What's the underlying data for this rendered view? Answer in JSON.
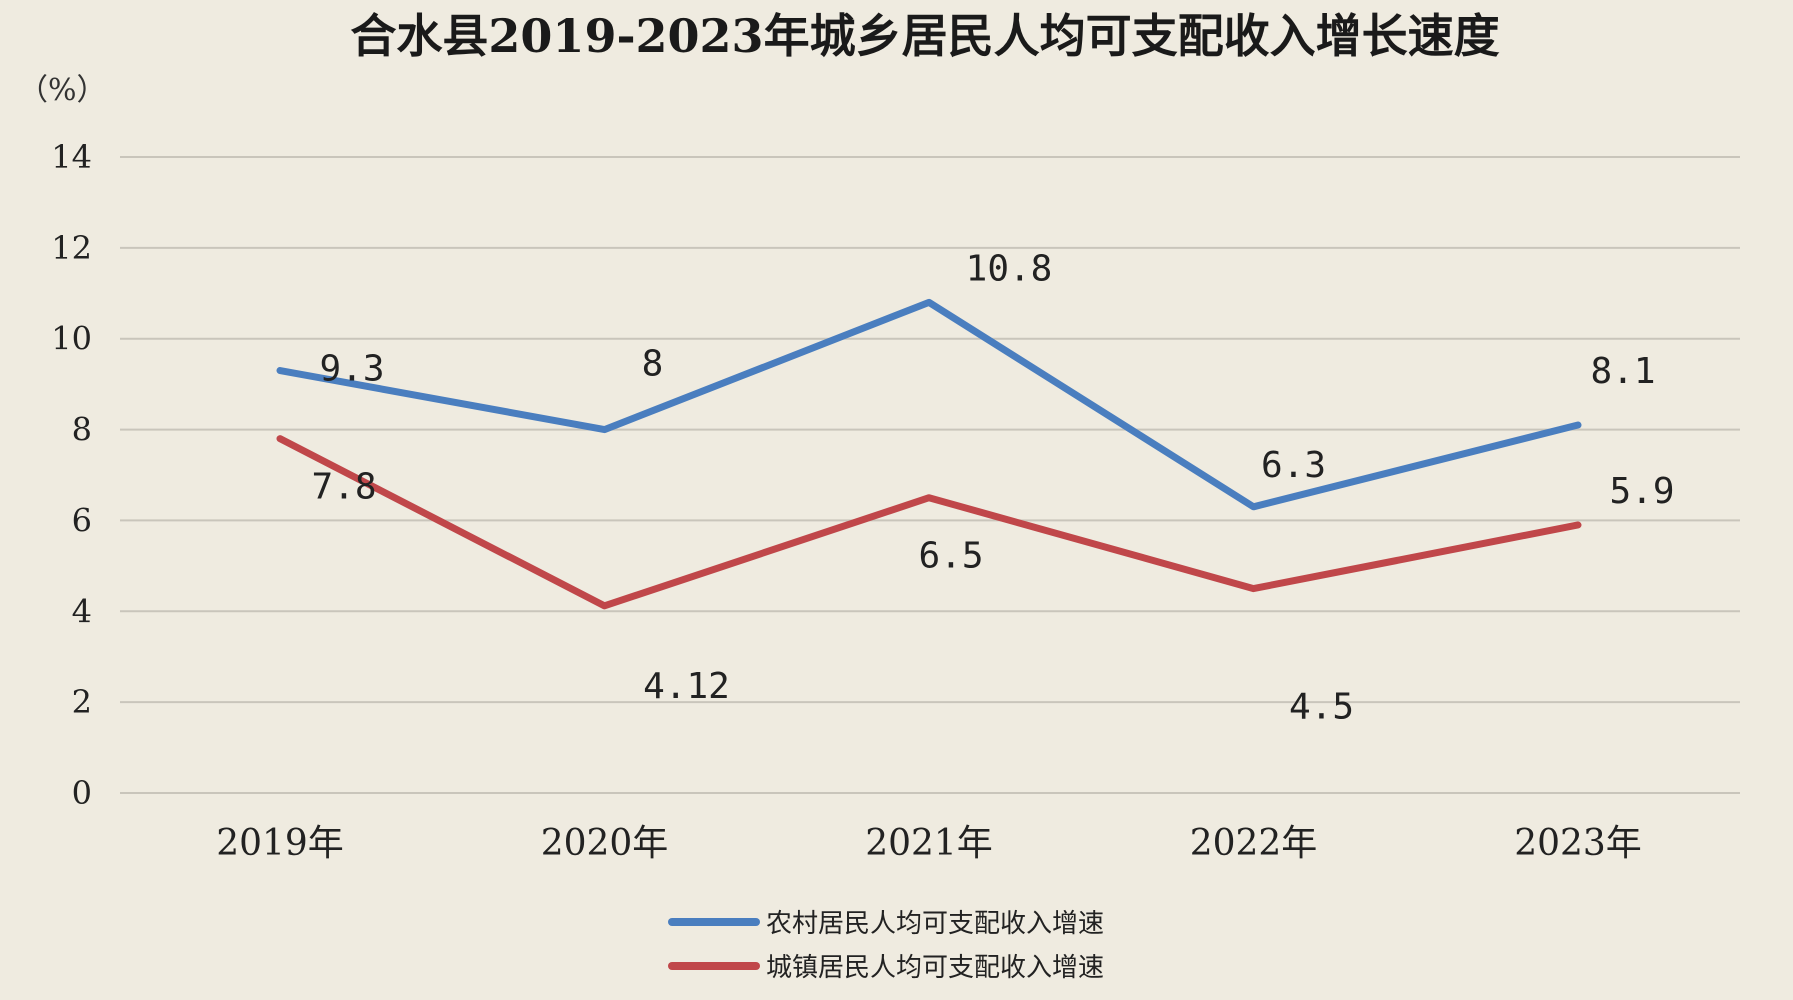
{
  "chart_data": {
    "type": "line",
    "title": "合水县2019-2023年城乡居民人均可支配收入增长速度",
    "unit_label": "（%）",
    "categories": [
      "2019年",
      "2020年",
      "2021年",
      "2022年",
      "2023年"
    ],
    "ylim": [
      0,
      14
    ],
    "yticks": [
      0,
      2,
      4,
      6,
      8,
      10,
      12,
      14
    ],
    "grid": true,
    "legend_position": "bottom",
    "series": [
      {
        "name": "农村居民人均可支配收入增速",
        "color": "#4a7ebf",
        "values": [
          9.3,
          8,
          10.8,
          6.3,
          8.1
        ],
        "labels": [
          "9.3",
          "8",
          "10.8",
          "6.3",
          "8.1"
        ]
      },
      {
        "name": "城镇居民人均可支配收入增速",
        "color": "#c0474a",
        "values": [
          7.8,
          4.12,
          6.5,
          4.5,
          5.9
        ],
        "labels": [
          "7.8",
          "4.12",
          "6.5",
          "4.5",
          "5.9"
        ]
      }
    ]
  }
}
